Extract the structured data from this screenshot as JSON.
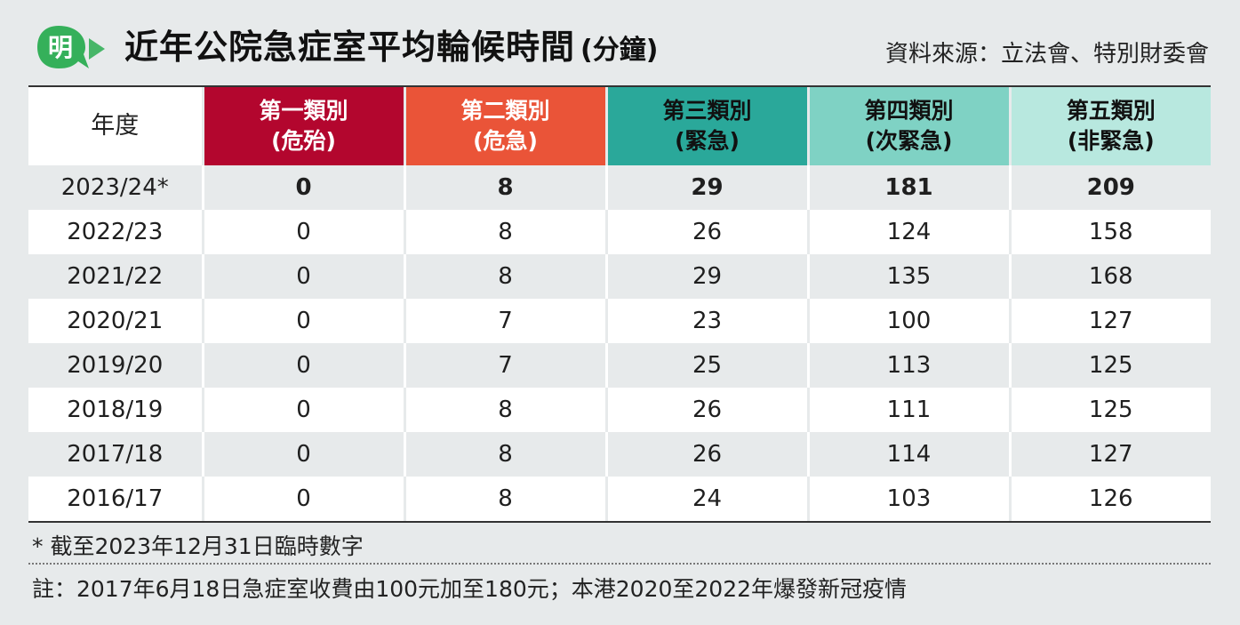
{
  "logo": {
    "char": "明"
  },
  "title": {
    "main": "近年公院急症室平均輪候時間",
    "unit": "(分鐘)"
  },
  "source": "資料來源：立法會、特別財委會",
  "colors": {
    "background": "#e7eaeb",
    "cat1": "#b3062e",
    "cat2": "#ea5438",
    "cat3": "#2aa89a",
    "cat4": "#7fd2c4",
    "cat5": "#b8e8df",
    "logo": "#35b05a"
  },
  "chart_data": {
    "type": "table",
    "columns": [
      {
        "line1": "年度",
        "line2": ""
      },
      {
        "line1": "第一類別",
        "line2": "(危殆)"
      },
      {
        "line1": "第二類別",
        "line2": "(危急)"
      },
      {
        "line1": "第三類別",
        "line2": "(緊急)"
      },
      {
        "line1": "第四類別",
        "line2": "(次緊急)"
      },
      {
        "line1": "第五類別",
        "line2": "(非緊急)"
      }
    ],
    "rows": [
      [
        "2023/24*",
        "0",
        "8",
        "29",
        "181",
        "209"
      ],
      [
        "2022/23",
        "0",
        "8",
        "26",
        "124",
        "158"
      ],
      [
        "2021/22",
        "0",
        "8",
        "29",
        "135",
        "168"
      ],
      [
        "2020/21",
        "0",
        "7",
        "23",
        "100",
        "127"
      ],
      [
        "2019/20",
        "0",
        "7",
        "25",
        "113",
        "125"
      ],
      [
        "2018/19",
        "0",
        "8",
        "26",
        "111",
        "125"
      ],
      [
        "2017/18",
        "0",
        "8",
        "26",
        "114",
        "127"
      ],
      [
        "2016/17",
        "0",
        "8",
        "24",
        "103",
        "126"
      ]
    ]
  },
  "footnote": "* 截至2023年12月31日臨時數字",
  "note": "註：2017年6月18日急症室收費由100元加至180元；本港2020至2022年爆發新冠疫情"
}
